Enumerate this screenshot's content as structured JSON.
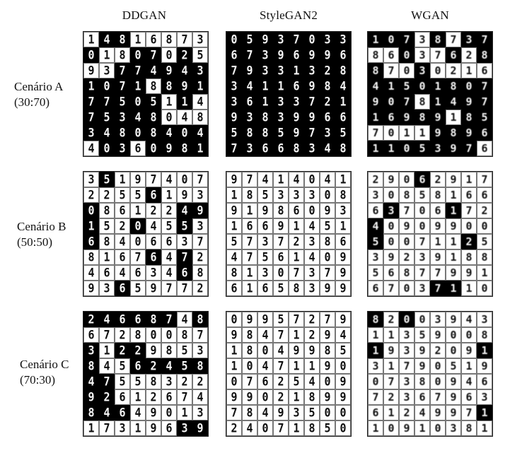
{
  "columns": [
    "DDGAN",
    "StyleGAN2",
    "WGAN"
  ],
  "rows": [
    {
      "label": "Cenário A",
      "ratio": "(30:70)"
    },
    {
      "label": "Cenário B",
      "ratio": "(50:50)"
    },
    {
      "label": "Cenário C",
      "ratio": "(70:30)"
    }
  ],
  "grids": {
    "A": {
      "DDGAN": {
        "style": "mixed",
        "digits": [
          "1",
          "4",
          "8",
          "1",
          "6",
          "8",
          "7",
          "3",
          "0",
          "1",
          "8",
          "0",
          "7",
          "0",
          "2",
          "5",
          "9",
          "3",
          "7",
          "7",
          "4",
          "9",
          "4",
          "3",
          "1",
          "0",
          "7",
          "1",
          "8",
          "8",
          "9",
          "1",
          "7",
          "7",
          "5",
          "0",
          "5",
          "1",
          "1",
          "4",
          "7",
          "5",
          "3",
          "4",
          "8",
          "0",
          "4",
          "8",
          "3",
          "4",
          "8",
          "0",
          "8",
          "4",
          "0",
          "4",
          "4",
          "0",
          "3",
          "6",
          "0",
          "9",
          "8",
          "1"
        ],
        "dark": [
          0,
          1,
          1,
          0,
          0,
          0,
          0,
          0,
          1,
          0,
          0,
          1,
          1,
          0,
          1,
          0,
          0,
          0,
          1,
          1,
          1,
          1,
          1,
          1,
          1,
          1,
          1,
          1,
          0,
          1,
          1,
          1,
          1,
          1,
          1,
          1,
          1,
          0,
          1,
          0,
          1,
          1,
          1,
          1,
          1,
          0,
          0,
          0,
          1,
          1,
          1,
          1,
          1,
          1,
          1,
          1,
          0,
          1,
          1,
          0,
          1,
          1,
          1,
          1
        ]
      },
      "StyleGAN2": {
        "style": "dark",
        "digits": [
          "0",
          "5",
          "9",
          "3",
          "7",
          "0",
          "3",
          "3",
          "6",
          "7",
          "3",
          "9",
          "6",
          "9",
          "9",
          "6",
          "7",
          "9",
          "3",
          "3",
          "1",
          "3",
          "2",
          "8",
          "3",
          "4",
          "1",
          "1",
          "6",
          "9",
          "8",
          "4",
          "3",
          "6",
          "1",
          "3",
          "3",
          "7",
          "2",
          "1",
          "9",
          "3",
          "8",
          "3",
          "9",
          "9",
          "6",
          "6",
          "5",
          "8",
          "8",
          "5",
          "9",
          "7",
          "3",
          "5",
          "7",
          "3",
          "6",
          "6",
          "8",
          "3",
          "4",
          "8"
        ]
      },
      "WGAN": {
        "style": "noisy",
        "digits": [
          "1",
          "0",
          "7",
          "3",
          "8",
          "7",
          "3",
          "7",
          "8",
          "6",
          "0",
          "3",
          "7",
          "6",
          "2",
          "8",
          "8",
          "7",
          "0",
          "3",
          "0",
          "2",
          "1",
          "6",
          "4",
          "1",
          "5",
          "0",
          "1",
          "8",
          "0",
          "7",
          "9",
          "0",
          "7",
          "8",
          "1",
          "4",
          "9",
          "7",
          "1",
          "6",
          "9",
          "8",
          "9",
          "1",
          "8",
          "5",
          "7",
          "0",
          "1",
          "1",
          "9",
          "8",
          "9",
          "6",
          "1",
          "1",
          "0",
          "5",
          "3",
          "9",
          "7",
          "6"
        ],
        "dark": [
          1,
          1,
          1,
          0,
          1,
          0,
          1,
          1,
          0,
          0,
          1,
          0,
          0,
          1,
          0,
          1,
          1,
          0,
          0,
          1,
          0,
          0,
          0,
          0,
          1,
          1,
          1,
          1,
          1,
          1,
          1,
          1,
          1,
          1,
          1,
          0,
          1,
          1,
          1,
          1,
          1,
          1,
          1,
          1,
          1,
          0,
          1,
          1,
          0,
          0,
          0,
          0,
          1,
          1,
          1,
          1,
          1,
          1,
          1,
          1,
          1,
          1,
          1,
          0
        ]
      }
    },
    "B": {
      "DDGAN": {
        "style": "mixed",
        "digits": [
          "3",
          "5",
          "1",
          "9",
          "7",
          "4",
          "0",
          "7",
          "2",
          "2",
          "5",
          "5",
          "6",
          "1",
          "9",
          "3",
          "0",
          "8",
          "6",
          "1",
          "2",
          "2",
          "4",
          "9",
          "1",
          "5",
          "2",
          "0",
          "4",
          "5",
          "5",
          "3",
          "6",
          "8",
          "4",
          "0",
          "6",
          "6",
          "3",
          "7",
          "8",
          "1",
          "6",
          "7",
          "6",
          "4",
          "7",
          "2",
          "4",
          "6",
          "4",
          "6",
          "3",
          "4",
          "6",
          "8",
          "9",
          "3",
          "6",
          "5",
          "9",
          "7",
          "7",
          "2"
        ],
        "dark": [
          0,
          1,
          0,
          0,
          0,
          0,
          0,
          0,
          0,
          0,
          0,
          0,
          1,
          0,
          0,
          0,
          1,
          0,
          0,
          0,
          0,
          0,
          1,
          1,
          1,
          0,
          0,
          1,
          0,
          0,
          1,
          0,
          1,
          0,
          0,
          0,
          0,
          0,
          0,
          0,
          0,
          0,
          0,
          0,
          1,
          0,
          1,
          0,
          0,
          0,
          0,
          0,
          0,
          0,
          1,
          0,
          0,
          0,
          1,
          0,
          0,
          0,
          0,
          0
        ]
      },
      "StyleGAN2": {
        "style": "light",
        "digits": [
          "9",
          "7",
          "4",
          "1",
          "4",
          "0",
          "4",
          "1",
          "1",
          "8",
          "5",
          "3",
          "3",
          "3",
          "0",
          "8",
          "9",
          "1",
          "9",
          "8",
          "6",
          "0",
          "9",
          "3",
          "1",
          "6",
          "6",
          "9",
          "1",
          "4",
          "5",
          "1",
          "5",
          "7",
          "3",
          "7",
          "2",
          "3",
          "8",
          "6",
          "4",
          "7",
          "5",
          "6",
          "1",
          "4",
          "0",
          "9",
          "8",
          "1",
          "3",
          "0",
          "7",
          "3",
          "7",
          "9",
          "6",
          "1",
          "6",
          "5",
          "8",
          "3",
          "9",
          "9"
        ]
      },
      "WGAN": {
        "style": "noisy",
        "digits": [
          "2",
          "9",
          "0",
          "6",
          "2",
          "9",
          "1",
          "7",
          "3",
          "0",
          "8",
          "5",
          "8",
          "1",
          "6",
          "6",
          "6",
          "3",
          "7",
          "0",
          "6",
          "1",
          "7",
          "2",
          "4",
          "0",
          "9",
          "0",
          "9",
          "9",
          "0",
          "0",
          "5",
          "0",
          "0",
          "7",
          "1",
          "1",
          "2",
          "5",
          "3",
          "9",
          "2",
          "3",
          "9",
          "1",
          "8",
          "8",
          "5",
          "6",
          "8",
          "7",
          "7",
          "9",
          "9",
          "1",
          "6",
          "7",
          "0",
          "3",
          "7",
          "1",
          "1",
          "0"
        ],
        "dark": [
          0,
          0,
          0,
          1,
          0,
          0,
          0,
          0,
          0,
          0,
          0,
          0,
          0,
          0,
          0,
          0,
          0,
          1,
          0,
          0,
          0,
          1,
          0,
          0,
          1,
          0,
          0,
          0,
          0,
          0,
          0,
          0,
          1,
          0,
          0,
          0,
          0,
          0,
          1,
          0,
          0,
          0,
          0,
          0,
          0,
          0,
          0,
          0,
          0,
          0,
          0,
          0,
          0,
          0,
          0,
          0,
          0,
          0,
          0,
          0,
          1,
          1,
          0,
          0
        ]
      }
    },
    "C": {
      "DDGAN": {
        "style": "mixed",
        "digits": [
          "2",
          "4",
          "6",
          "6",
          "8",
          "7",
          "4",
          "8",
          "6",
          "7",
          "2",
          "8",
          "0",
          "0",
          "8",
          "7",
          "3",
          "1",
          "2",
          "2",
          "9",
          "8",
          "5",
          "3",
          "8",
          "4",
          "5",
          "6",
          "2",
          "4",
          "5",
          "8",
          "4",
          "7",
          "5",
          "5",
          "8",
          "3",
          "2",
          "2",
          "9",
          "2",
          "6",
          "1",
          "2",
          "6",
          "7",
          "4",
          "8",
          "4",
          "6",
          "4",
          "9",
          "0",
          "1",
          "3",
          "1",
          "7",
          "3",
          "1",
          "9",
          "6",
          "3",
          "9"
        ],
        "dark": [
          1,
          1,
          1,
          1,
          1,
          1,
          0,
          1,
          0,
          0,
          0,
          0,
          0,
          0,
          0,
          0,
          1,
          0,
          1,
          1,
          0,
          0,
          0,
          0,
          1,
          0,
          0,
          1,
          1,
          1,
          1,
          1,
          1,
          1,
          0,
          0,
          0,
          0,
          0,
          0,
          1,
          1,
          0,
          0,
          0,
          0,
          0,
          0,
          1,
          1,
          1,
          0,
          0,
          0,
          0,
          0,
          0,
          0,
          0,
          0,
          0,
          0,
          1,
          1
        ]
      },
      "StyleGAN2": {
        "style": "light",
        "digits": [
          "0",
          "9",
          "9",
          "5",
          "7",
          "2",
          "7",
          "9",
          "9",
          "8",
          "4",
          "7",
          "1",
          "2",
          "9",
          "4",
          "1",
          "8",
          "0",
          "4",
          "9",
          "9",
          "8",
          "5",
          "1",
          "0",
          "4",
          "7",
          "1",
          "1",
          "9",
          "0",
          "0",
          "7",
          "6",
          "2",
          "5",
          "4",
          "0",
          "9",
          "9",
          "9",
          "0",
          "2",
          "1",
          "8",
          "9",
          "9",
          "7",
          "8",
          "4",
          "9",
          "3",
          "5",
          "0",
          "0",
          "2",
          "4",
          "0",
          "7",
          "1",
          "8",
          "5",
          "0"
        ]
      },
      "WGAN": {
        "style": "noisy",
        "digits": [
          "8",
          "2",
          "0",
          "0",
          "3",
          "9",
          "4",
          "3",
          "1",
          "1",
          "3",
          "5",
          "9",
          "0",
          "0",
          "8",
          "1",
          "9",
          "3",
          "9",
          "2",
          "0",
          "9",
          "1",
          "3",
          "1",
          "7",
          "9",
          "0",
          "5",
          "1",
          "9",
          "0",
          "7",
          "3",
          "8",
          "0",
          "9",
          "4",
          "6",
          "7",
          "2",
          "3",
          "6",
          "7",
          "9",
          "6",
          "3",
          "6",
          "1",
          "2",
          "4",
          "9",
          "9",
          "7",
          "1",
          "1",
          "0",
          "9",
          "1",
          "0",
          "3",
          "8",
          "1"
        ],
        "dark": [
          1,
          0,
          1,
          0,
          0,
          0,
          0,
          0,
          0,
          0,
          0,
          0,
          0,
          0,
          0,
          0,
          1,
          0,
          0,
          0,
          0,
          0,
          0,
          1,
          0,
          0,
          0,
          0,
          0,
          0,
          0,
          0,
          0,
          0,
          0,
          0,
          0,
          0,
          0,
          0,
          0,
          0,
          0,
          0,
          0,
          0,
          0,
          0,
          0,
          0,
          0,
          0,
          0,
          0,
          0,
          1,
          0,
          0,
          0,
          0,
          0,
          0,
          0,
          0
        ]
      }
    }
  }
}
